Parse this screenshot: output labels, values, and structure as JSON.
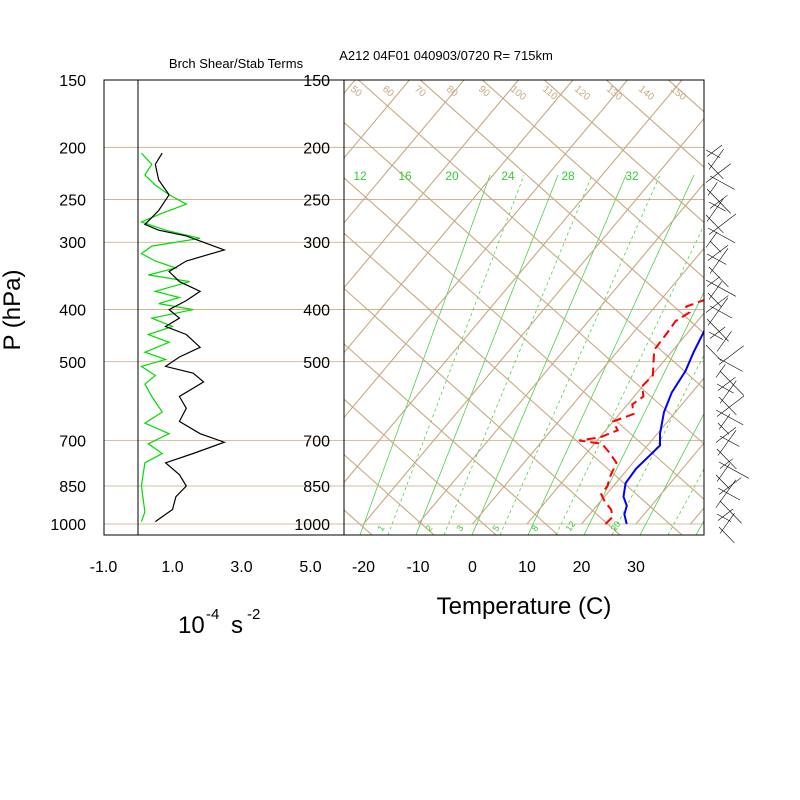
{
  "left_title": "Brch Shear/Stab Terms",
  "right_title": "A212 04F01 040903/0720 R= 715km",
  "ylabel": "P (hPa)",
  "left_units": {
    "base": "10",
    "exp": "-4",
    "unit": "s",
    "unit_exp": "-2"
  },
  "xlabel_temp": "Temperature (C)",
  "pressure_ticks": [
    "150",
    "200",
    "250",
    "300",
    "400",
    "500",
    "700",
    "850",
    "1000"
  ],
  "colors": {
    "adiabat": "#c8a882",
    "mixing": "#33cc33",
    "temperature": "#0000ff",
    "dewpoint": "#ff0000",
    "green_profile": "#00dd00",
    "black_profile": "#000000",
    "frame": "#000000"
  },
  "chart_data": [
    {
      "type": "line",
      "panel": "shear-stability",
      "title": "Brch Shear/Stab Terms",
      "xlabel": "10^-4 s^-2",
      "ylabel": "P (hPa)",
      "x_ticks": [
        "-1.0",
        "1.0",
        "3.0",
        "5.0"
      ],
      "xlim": [
        -1.0,
        5.0
      ],
      "ylim": [
        1000,
        150
      ],
      "y_scale": "log",
      "series": [
        {
          "color": "#000000",
          "points": [
            [
              0.7,
              205
            ],
            [
              0.5,
              215
            ],
            [
              0.6,
              230
            ],
            [
              0.9,
              245
            ],
            [
              0.6,
              262
            ],
            [
              0.2,
              278
            ],
            [
              0.6,
              285
            ],
            [
              1.4,
              292
            ],
            [
              2.5,
              310
            ],
            [
              1.4,
              325
            ],
            [
              0.9,
              340
            ],
            [
              1.2,
              355
            ],
            [
              1.8,
              370
            ],
            [
              1.4,
              385
            ],
            [
              0.9,
              400
            ],
            [
              1.2,
              415
            ],
            [
              0.8,
              430
            ],
            [
              1.4,
              445
            ],
            [
              1.8,
              470
            ],
            [
              1.2,
              490
            ],
            [
              0.8,
              510
            ],
            [
              1.6,
              525
            ],
            [
              1.9,
              545
            ],
            [
              1.2,
              580
            ],
            [
              1.4,
              610
            ],
            [
              1.2,
              645
            ],
            [
              1.8,
              680
            ],
            [
              2.5,
              705
            ],
            [
              1.6,
              740
            ],
            [
              0.8,
              770
            ],
            [
              1.2,
              810
            ],
            [
              1.4,
              850
            ],
            [
              1.1,
              890
            ],
            [
              1.0,
              940
            ],
            [
              0.5,
              990
            ]
          ]
        },
        {
          "color": "#00dd00",
          "points": [
            [
              0.1,
              205
            ],
            [
              0.4,
              215
            ],
            [
              0.2,
              225
            ],
            [
              0.5,
              235
            ],
            [
              0.9,
              245
            ],
            [
              1.4,
              255
            ],
            [
              0.7,
              265
            ],
            [
              0.1,
              275
            ],
            [
              0.8,
              285
            ],
            [
              1.8,
              295
            ],
            [
              0.4,
              305
            ],
            [
              0.1,
              315
            ],
            [
              0.5,
              325
            ],
            [
              1.1,
              335
            ],
            [
              0.3,
              345
            ],
            [
              1.5,
              355
            ],
            [
              0.5,
              370
            ],
            [
              1.2,
              380
            ],
            [
              0.6,
              390
            ],
            [
              1.6,
              400
            ],
            [
              0.4,
              415
            ],
            [
              1.0,
              430
            ],
            [
              0.3,
              445
            ],
            [
              0.9,
              460
            ],
            [
              0.2,
              480
            ],
            [
              0.8,
              495
            ],
            [
              0.1,
              510
            ],
            [
              0.5,
              530
            ],
            [
              0.2,
              550
            ],
            [
              0.4,
              580
            ],
            [
              0.7,
              620
            ],
            [
              0.2,
              650
            ],
            [
              0.9,
              680
            ],
            [
              0.3,
              710
            ],
            [
              0.7,
              740
            ],
            [
              0.2,
              770
            ],
            [
              0.1,
              850
            ],
            [
              0.2,
              950
            ],
            [
              0.1,
              990
            ]
          ]
        }
      ]
    },
    {
      "type": "line",
      "panel": "skew-t",
      "title": "A212 04F01 040903/0720 R= 715km",
      "xlabel": "Temperature (C)",
      "x_ticks": [
        "-20",
        "-10",
        "0",
        "10",
        "20",
        "30"
      ],
      "xlim": [
        -23,
        43
      ],
      "ylim": [
        1000,
        150
      ],
      "y_scale": "log",
      "skewed_isotherms": [
        -120,
        -110,
        -100,
        -90,
        -80,
        -70,
        -60,
        -50,
        -40,
        -30,
        -20,
        -10,
        0,
        10,
        20,
        30,
        40
      ],
      "adiabat_labels": [
        "50",
        "60",
        "70",
        "80",
        "90",
        "100",
        "110",
        "120",
        "130",
        "140",
        "150"
      ],
      "mixing_ratio_top_labels": [
        "12",
        "16",
        "20",
        "24",
        "28",
        "32"
      ],
      "mixing_ratio_bottom_labels": [
        "1",
        "2",
        "3",
        "5",
        "8",
        "12",
        "20"
      ],
      "series": [
        {
          "name": "Temperature",
          "color": "#0000ff",
          "dash": "solid",
          "points": [
            [
              28.3,
              1000
            ],
            [
              26.4,
              960
            ],
            [
              25.5,
              925
            ],
            [
              23.5,
              890
            ],
            [
              21.8,
              840
            ],
            [
              21.5,
              790
            ],
            [
              22.3,
              715
            ],
            [
              20.5,
              680
            ],
            [
              17.9,
              620
            ],
            [
              16.3,
              570
            ],
            [
              15.5,
              520
            ],
            [
              14.1,
              480
            ],
            [
              12.5,
              430
            ],
            [
              9.5,
              380
            ],
            [
              7.0,
              345
            ],
            [
              5.9,
              310
            ],
            [
              5.7,
              290
            ],
            [
              4.0,
              270
            ],
            [
              1.6,
              245
            ],
            [
              -0.9,
              222
            ],
            [
              -2.7,
              210
            ],
            [
              -3.7,
              200
            ]
          ]
        },
        {
          "name": "Dewpoint",
          "color": "#ff0000",
          "dash": "dashed",
          "points": [
            [
              24.4,
              1000
            ],
            [
              24.6,
              970
            ],
            [
              23.2,
              940
            ],
            [
              20.9,
              910
            ],
            [
              19.0,
              880
            ],
            [
              18.9,
              850
            ],
            [
              18.0,
              820
            ],
            [
              17.0,
              770
            ],
            [
              13.9,
              735
            ],
            [
              11.4,
              710
            ],
            [
              6.7,
              700
            ],
            [
              10.1,
              690
            ],
            [
              12.2,
              670
            ],
            [
              10.0,
              645
            ],
            [
              12.6,
              625
            ],
            [
              10.9,
              600
            ],
            [
              11.7,
              580
            ],
            [
              9.9,
              555
            ],
            [
              10.2,
              530
            ],
            [
              8.2,
              500
            ],
            [
              6.5,
              475
            ],
            [
              6.3,
              445
            ],
            [
              6.0,
              420
            ],
            [
              7.2,
              405
            ],
            [
              5.7,
              395
            ],
            [
              8.9,
              380
            ],
            [
              9.2,
              360
            ],
            [
              8.3,
              340
            ],
            [
              9.4,
              320
            ],
            [
              6.4,
              300
            ],
            [
              3.4,
              295
            ],
            [
              3.0,
              280
            ],
            [
              2.7,
              255
            ],
            [
              1.9,
              235
            ],
            [
              0.6,
              225
            ]
          ]
        }
      ]
    }
  ]
}
